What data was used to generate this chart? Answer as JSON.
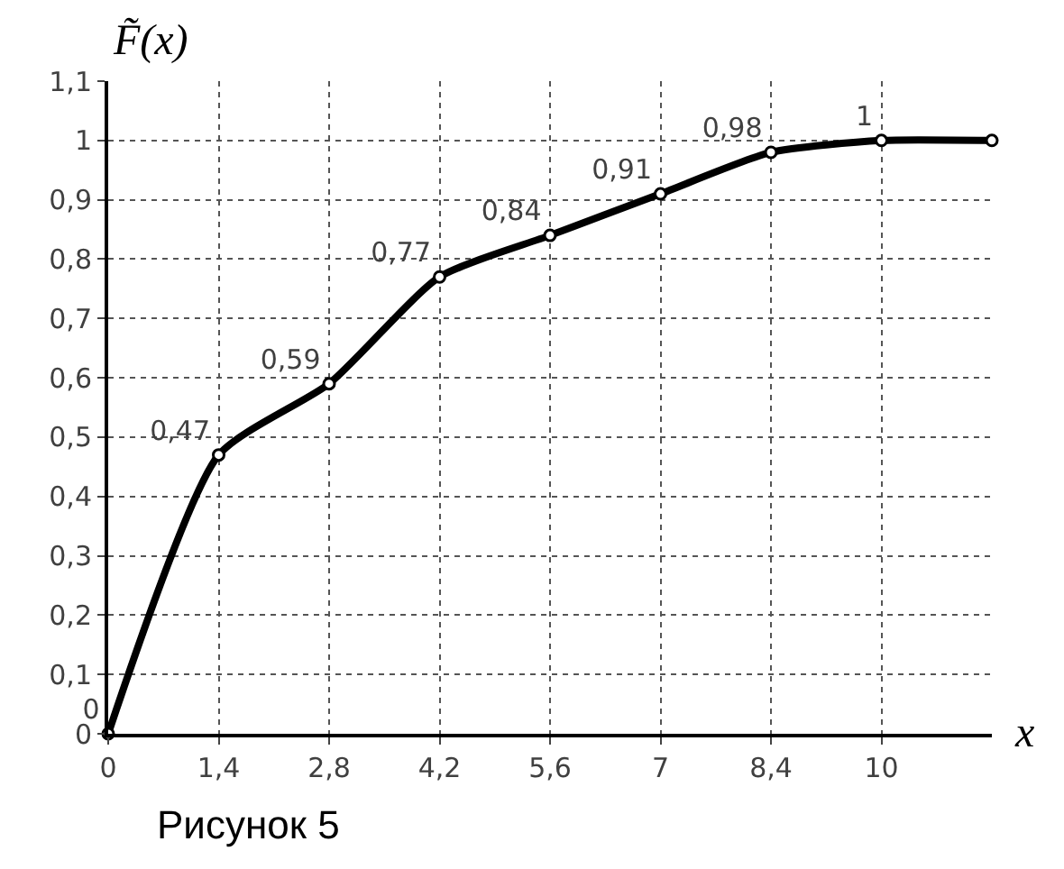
{
  "chart_data": {
    "type": "line",
    "ylabel": "F̃(x)",
    "xlabel": "x",
    "annotations": [
      "Рисунок 5"
    ],
    "categories": [
      "0",
      "1,4",
      "2,8",
      "4,2",
      "5,6",
      "7",
      "8,4",
      "10",
      null
    ],
    "series": [
      {
        "color": "#000000",
        "values": [
          0,
          0.47,
          0.59,
          0.77,
          0.84,
          0.91,
          0.98,
          1,
          1
        ],
        "value_labels": [
          "0",
          "0,47",
          "0,59",
          "0,77",
          "0,84",
          "0,91",
          "0,98",
          "1",
          null
        ]
      }
    ],
    "ylim": [
      0,
      1.1
    ],
    "yticks": [
      0,
      {
        "value": 0.1,
        "label": "0,1"
      },
      {
        "value": 0.2,
        "label": "0,2"
      },
      {
        "value": 0.3,
        "label": "0,3"
      },
      {
        "value": 0.4,
        "label": "0,4"
      },
      {
        "value": 0.5,
        "label": "0,5"
      },
      {
        "value": 0.6,
        "label": "0,6"
      },
      {
        "value": 0.7,
        "label": "0,7"
      },
      {
        "value": 0.8,
        "label": "0,8"
      },
      {
        "value": 0.9,
        "label": "0,9"
      },
      1,
      {
        "value": 1.1,
        "label": "1,1"
      }
    ],
    "grid": true,
    "marker": "circle",
    "line_style": "solid"
  }
}
